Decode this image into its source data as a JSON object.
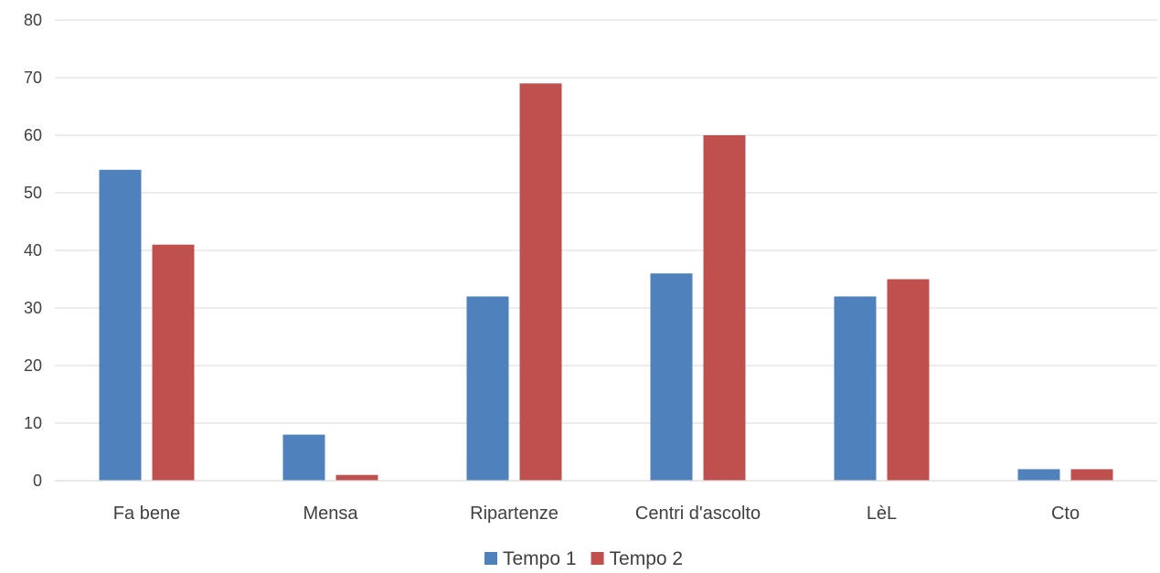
{
  "chart_data": {
    "type": "bar",
    "categories": [
      "Fa bene",
      "Mensa",
      "Ripartenze",
      "Centri d'ascolto",
      "LèL",
      "Cto"
    ],
    "series": [
      {
        "name": "Tempo 1",
        "color": "#4f81bd",
        "values": [
          54,
          8,
          32,
          36,
          32,
          2
        ]
      },
      {
        "name": "Tempo 2",
        "color": "#c0504d",
        "values": [
          41,
          1,
          69,
          60,
          35,
          2
        ]
      }
    ],
    "yticks": [
      "0",
      "10",
      "20",
      "30",
      "40",
      "50",
      "60",
      "70",
      "80"
    ],
    "ylim": [
      0,
      80
    ],
    "grid": true,
    "legend_position": "bottom"
  }
}
